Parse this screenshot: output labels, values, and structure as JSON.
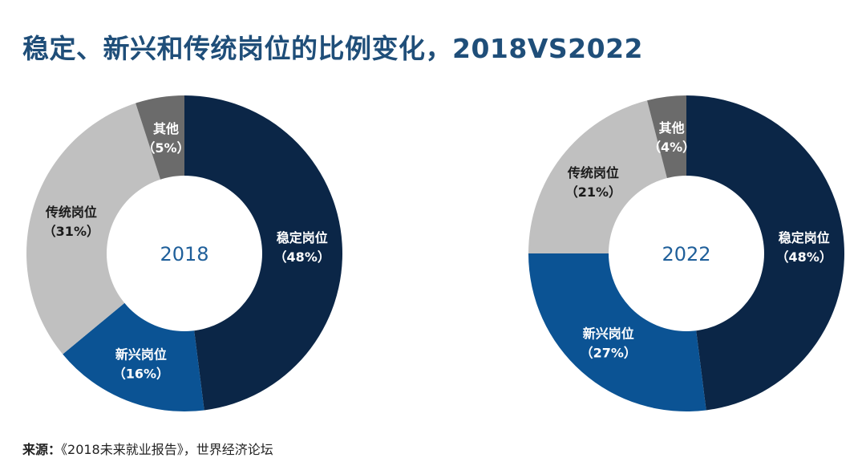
{
  "title": "稳定、新兴和传统岗位的比例变化，2018VS2022",
  "source": {
    "label": "来源：",
    "text": "《2018未来就业报告》，世界经济论坛"
  },
  "colors": {
    "稳定岗位": "#0b2647",
    "新兴岗位": "#0b5394",
    "传统岗位": "#c0c0c0",
    "其他": "#6b6b6b",
    "hole": "#ffffff",
    "center_text": "#1f5f9a"
  },
  "chart_data": [
    {
      "type": "pie",
      "center_label": "2018",
      "slices": [
        {
          "name": "稳定岗位",
          "value": 48,
          "label": "（48%）",
          "text": "light"
        },
        {
          "name": "新兴岗位",
          "value": 16,
          "label": "（16%）",
          "text": "light"
        },
        {
          "name": "传统岗位",
          "value": 31,
          "label": "（31%）",
          "text": "dark"
        },
        {
          "name": "其他",
          "value": 5,
          "label": "（5%）",
          "text": "light"
        }
      ]
    },
    {
      "type": "pie",
      "center_label": "2022",
      "slices": [
        {
          "name": "稳定岗位",
          "value": 48,
          "label": "（48%）",
          "text": "light"
        },
        {
          "name": "新兴岗位",
          "value": 27,
          "label": "（27%）",
          "text": "light"
        },
        {
          "name": "传统岗位",
          "value": 21,
          "label": "（21%）",
          "text": "dark"
        },
        {
          "name": "其他",
          "value": 4,
          "label": "（4%）",
          "text": "light"
        }
      ]
    }
  ]
}
